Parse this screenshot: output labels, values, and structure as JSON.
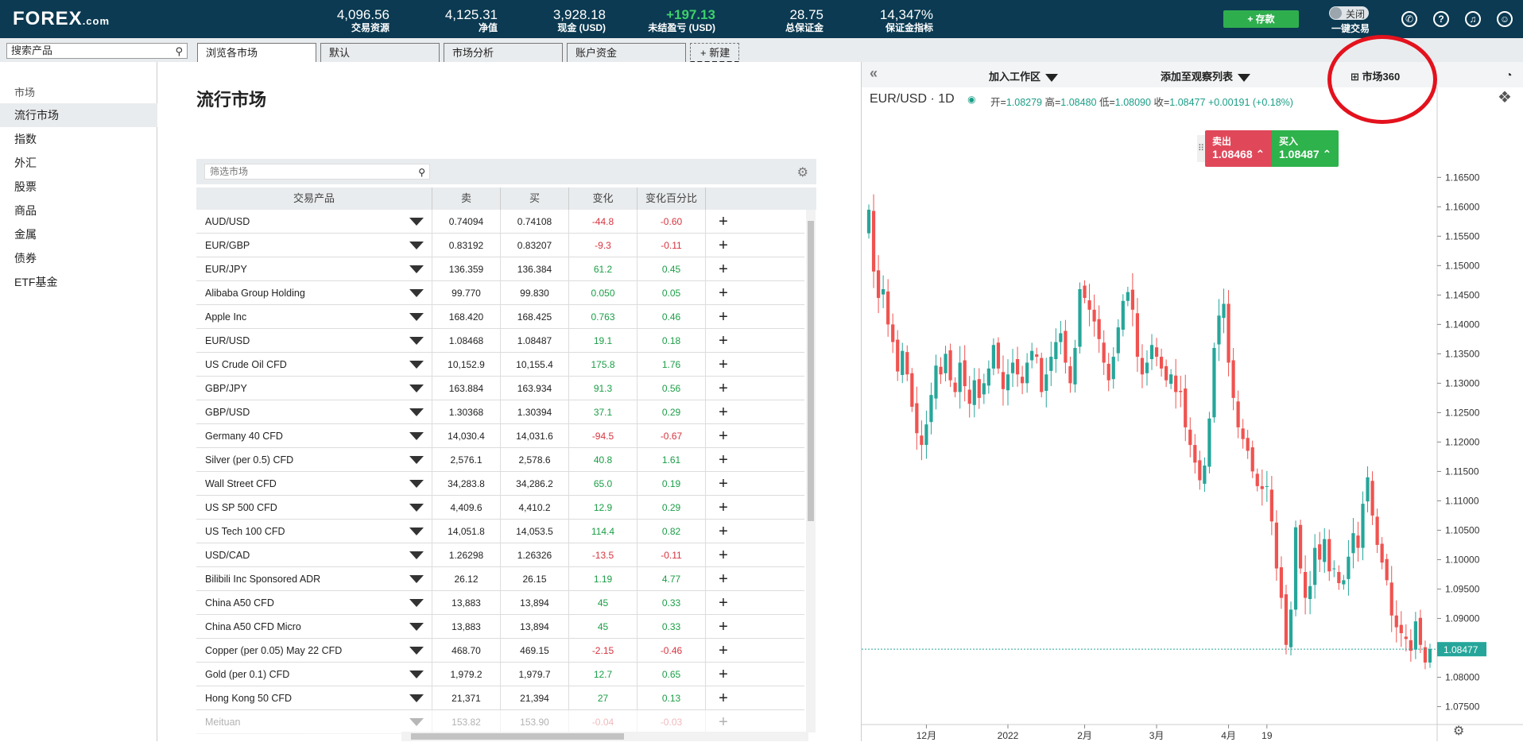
{
  "header": {
    "logo_main": "FOREX",
    "logo_suffix": ".com",
    "stats": [
      {
        "value": "4,096.56",
        "label": "交易资源"
      },
      {
        "value": "4,125.31",
        "label": "净值"
      },
      {
        "value": "3,928.18",
        "label": "现金 (USD)"
      },
      {
        "value": "+197.13",
        "label": "未结盈亏 (USD)"
      },
      {
        "value": "28.75",
        "label": "总保证金"
      },
      {
        "value": "14,347%",
        "label": "保证金指标"
      }
    ],
    "deposit_label": "+ 存款",
    "oneclick_toggle": "关闭",
    "oneclick_label": "一键交易",
    "icons": [
      "phone-icon",
      "help-icon",
      "notification-icon",
      "account-icon"
    ]
  },
  "search": {
    "placeholder": "搜索产品"
  },
  "tabs": [
    {
      "label": "浏览各市场",
      "active": true
    },
    {
      "label": "默认"
    },
    {
      "label": "市场分析"
    },
    {
      "label": "账户资金"
    },
    {
      "label": "+ 新建"
    }
  ],
  "sidebar": {
    "heading": "市场",
    "items": [
      {
        "label": "流行市场",
        "active": true
      },
      {
        "label": "指数"
      },
      {
        "label": "外汇"
      },
      {
        "label": "股票"
      },
      {
        "label": "商品"
      },
      {
        "label": "金属"
      },
      {
        "label": "债券"
      },
      {
        "label": "ETF基金"
      }
    ]
  },
  "main": {
    "title": "流行市场",
    "filter_placeholder": "筛选市场",
    "columns": [
      "交易产品",
      "卖",
      "买",
      "变化",
      "变化百分比"
    ],
    "rows": [
      {
        "name": "AUD/USD",
        "sell": "0.74094",
        "buy": "0.74108",
        "change": "-44.8",
        "pct": "-0.60",
        "dir": "neg"
      },
      {
        "name": "EUR/GBP",
        "sell": "0.83192",
        "buy": "0.83207",
        "change": "-9.3",
        "pct": "-0.11",
        "dir": "neg"
      },
      {
        "name": "EUR/JPY",
        "sell": "136.359",
        "buy": "136.384",
        "change": "61.2",
        "pct": "0.45",
        "dir": "pos"
      },
      {
        "name": "Alibaba Group Holding",
        "sell": "99.770",
        "buy": "99.830",
        "change": "0.050",
        "pct": "0.05",
        "dir": "pos"
      },
      {
        "name": "Apple Inc",
        "sell": "168.420",
        "buy": "168.425",
        "change": "0.763",
        "pct": "0.46",
        "dir": "pos"
      },
      {
        "name": "EUR/USD",
        "sell": "1.08468",
        "buy": "1.08487",
        "change": "19.1",
        "pct": "0.18",
        "dir": "pos"
      },
      {
        "name": "US Crude Oil CFD",
        "sell": "10,152.9",
        "buy": "10,155.4",
        "change": "175.8",
        "pct": "1.76",
        "dir": "pos"
      },
      {
        "name": "GBP/JPY",
        "sell": "163.884",
        "buy": "163.934",
        "change": "91.3",
        "pct": "0.56",
        "dir": "pos"
      },
      {
        "name": "GBP/USD",
        "sell": "1.30368",
        "buy": "1.30394",
        "change": "37.1",
        "pct": "0.29",
        "dir": "pos"
      },
      {
        "name": "Germany 40 CFD",
        "sell": "14,030.4",
        "buy": "14,031.6",
        "change": "-94.5",
        "pct": "-0.67",
        "dir": "neg"
      },
      {
        "name": "Silver (per 0.5) CFD",
        "sell": "2,576.1",
        "buy": "2,578.6",
        "change": "40.8",
        "pct": "1.61",
        "dir": "pos"
      },
      {
        "name": "Wall Street CFD",
        "sell": "34,283.8",
        "buy": "34,286.2",
        "change": "65.0",
        "pct": "0.19",
        "dir": "pos"
      },
      {
        "name": "US SP 500 CFD",
        "sell": "4,409.6",
        "buy": "4,410.2",
        "change": "12.9",
        "pct": "0.29",
        "dir": "pos"
      },
      {
        "name": "US Tech 100 CFD",
        "sell": "14,051.8",
        "buy": "14,053.5",
        "change": "114.4",
        "pct": "0.82",
        "dir": "pos"
      },
      {
        "name": "USD/CAD",
        "sell": "1.26298",
        "buy": "1.26326",
        "change": "-13.5",
        "pct": "-0.11",
        "dir": "neg"
      },
      {
        "name": "Bilibili Inc Sponsored ADR",
        "sell": "26.12",
        "buy": "26.15",
        "change": "1.19",
        "pct": "4.77",
        "dir": "pos"
      },
      {
        "name": "China A50 CFD",
        "sell": "13,883",
        "buy": "13,894",
        "change": "45",
        "pct": "0.33",
        "dir": "pos"
      },
      {
        "name": "China A50 CFD Micro",
        "sell": "13,883",
        "buy": "13,894",
        "change": "45",
        "pct": "0.33",
        "dir": "pos"
      },
      {
        "name": "Copper (per 0.05) May 22 CFD",
        "sell": "468.70",
        "buy": "469.15",
        "change": "-2.15",
        "pct": "-0.46",
        "dir": "neg"
      },
      {
        "name": "Gold (per 0.1) CFD",
        "sell": "1,979.2",
        "buy": "1,979.7",
        "change": "12.7",
        "pct": "0.65",
        "dir": "pos"
      },
      {
        "name": "Hong Kong 50 CFD",
        "sell": "21,371",
        "buy": "21,394",
        "change": "27",
        "pct": "0.13",
        "dir": "pos"
      },
      {
        "name": "Meituan",
        "sell": "153.82",
        "buy": "153.90",
        "change": "-0.04",
        "pct": "-0.03",
        "dir": "neg"
      }
    ]
  },
  "chart_panel": {
    "toolbar": {
      "add_workspace": "加入工作区",
      "add_watchlist": "添加至观察列表",
      "market360": "市场360"
    },
    "symbol": "EUR/USD",
    "interval": "1D",
    "ohlc": {
      "open_label": "开=",
      "open": "1.08279",
      "high_label": "高=",
      "high": "1.08480",
      "low_label": "低=",
      "low": "1.08090",
      "close_label": "收=",
      "close": "1.08477",
      "change": "+0.00191 (+0.18%)"
    },
    "sell_label": "卖出",
    "sell_price": "1.08468",
    "buy_label": "买入",
    "buy_price": "1.08487",
    "last_price": "1.08477"
  },
  "colors": {
    "topbar": "#0b3a52",
    "up": "#26a69a",
    "down": "#ef5350",
    "sell": "#e0485a",
    "buy": "#2eb24b",
    "highlight": "#e3121d"
  },
  "chart_data": {
    "type": "candlestick",
    "title": "EUR/USD · 1D",
    "y_ticks": [
      "1.16500",
      "1.16000",
      "1.15500",
      "1.15000",
      "1.14500",
      "1.14000",
      "1.13500",
      "1.13000",
      "1.12500",
      "1.12000",
      "1.11500",
      "1.11000",
      "1.10500",
      "1.10000",
      "1.09500",
      "1.09000",
      "1.08500",
      "1.08000",
      "1.07500"
    ],
    "ylim": [
      1.0725,
      1.1695
    ],
    "x_ticks": [
      "12月",
      "2022",
      "2月",
      "3月",
      "4月",
      "19"
    ],
    "x_tick_index": [
      12,
      29,
      45,
      60,
      75,
      83
    ],
    "series": [
      {
        "name": "EUR/USD",
        "close": [
          1.1595,
          1.149,
          1.1445,
          1.146,
          1.14,
          1.137,
          1.132,
          1.1355,
          1.1315,
          1.126,
          1.1215,
          1.1195,
          1.123,
          1.128,
          1.133,
          1.1315,
          1.135,
          1.1305,
          1.1285,
          1.1335,
          1.1295,
          1.1265,
          1.1305,
          1.1275,
          1.13,
          1.1325,
          1.1365,
          1.1325,
          1.129,
          1.1315,
          1.1335,
          1.1315,
          1.13,
          1.1335,
          1.1355,
          1.1345,
          1.1285,
          1.1315,
          1.1345,
          1.137,
          1.1385,
          1.1335,
          1.13,
          1.136,
          1.146,
          1.1445,
          1.1425,
          1.1405,
          1.1375,
          1.1335,
          1.1305,
          1.1345,
          1.1395,
          1.144,
          1.1455,
          1.1425,
          1.1345,
          1.1315,
          1.1335,
          1.1365,
          1.1345,
          1.1325,
          1.1305,
          1.1315,
          1.1285,
          1.1285,
          1.1225,
          1.1195,
          1.1165,
          1.1135,
          1.116,
          1.124,
          1.136,
          1.1415,
          1.1435,
          1.1335,
          1.1275,
          1.1225,
          1.1205,
          1.1185,
          1.115,
          1.1125,
          1.112,
          1.1125,
          1.1065,
          1.0985,
          1.0935,
          1.0855,
          1.0915,
          1.1055,
          1.0985,
          1.0935,
          1.0955,
          1.102,
          1.1,
          1.1035,
          1.098,
          1.0985,
          1.096,
          1.0965,
          1.1005,
          1.1045,
          1.102,
          1.1095,
          1.114,
          1.1075,
          1.1025,
          1.0995,
          1.0965,
          1.0905,
          1.0885,
          1.0875,
          1.0865,
          1.0845,
          1.0895,
          1.0855,
          1.0825,
          1.0848
        ]
      }
    ]
  }
}
